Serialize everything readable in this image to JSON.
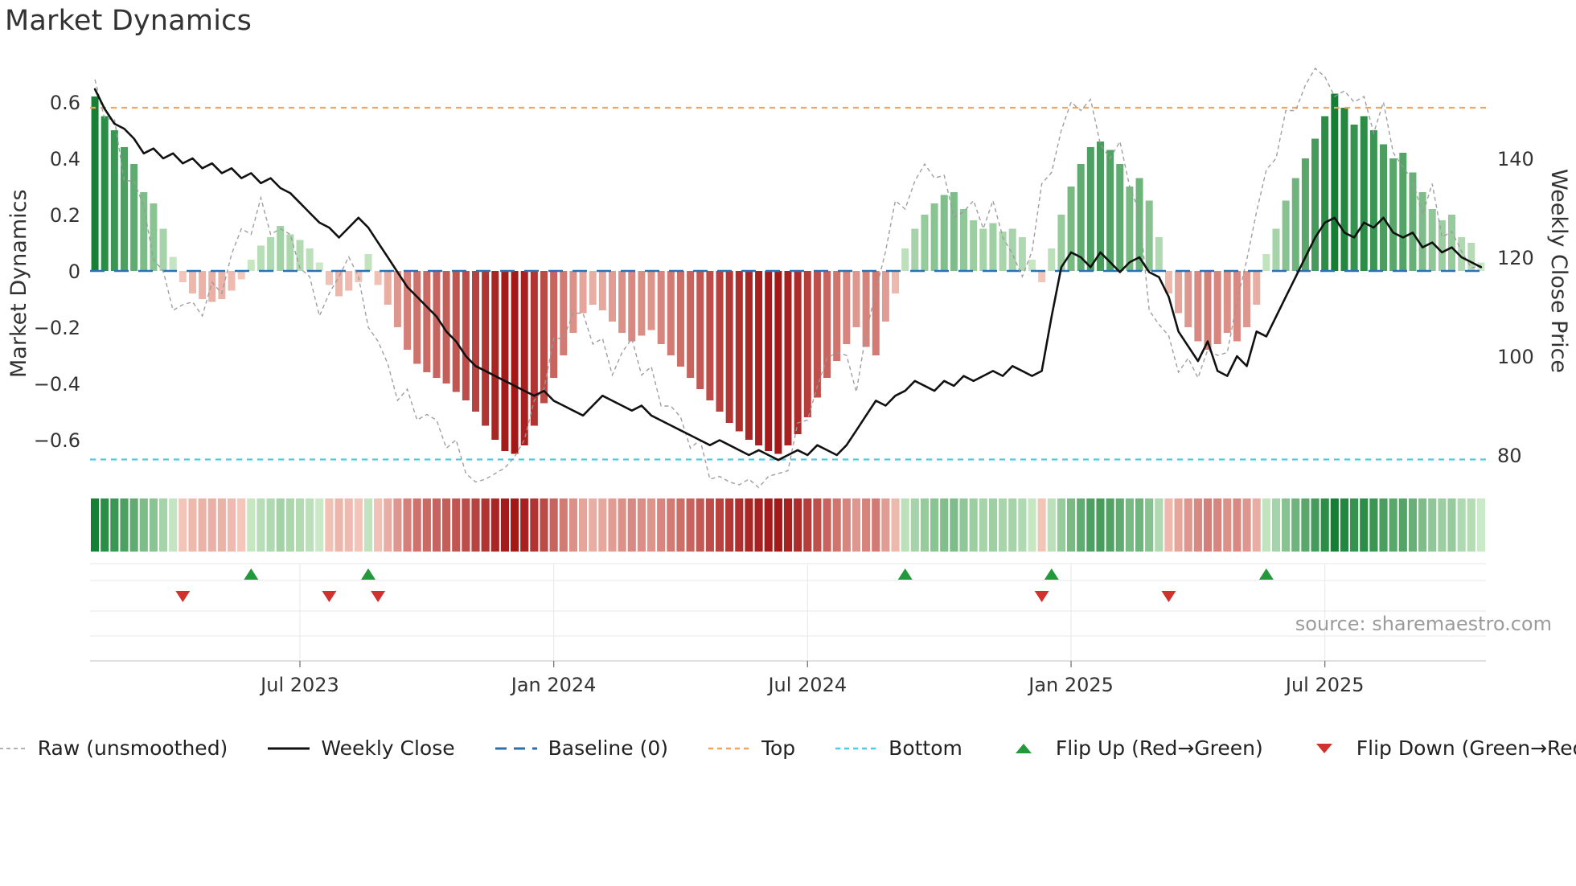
{
  "title": "Market Dynamics",
  "source": "source: sharemaestro.com",
  "axes": {
    "left_label": "Market Dynamics",
    "right_label": "Weekly Close Price",
    "left_ticks": [
      {
        "value": 0.6,
        "label": "0.6"
      },
      {
        "value": 0.4,
        "label": "0.4"
      },
      {
        "value": 0.2,
        "label": "0.2"
      },
      {
        "value": 0.0,
        "label": "0"
      },
      {
        "value": -0.2,
        "label": "−0.2"
      },
      {
        "value": -0.4,
        "label": "−0.4"
      },
      {
        "value": -0.6,
        "label": "−0.6"
      }
    ],
    "right_ticks": [
      {
        "value": 140,
        "label": "140"
      },
      {
        "value": 120,
        "label": "120"
      },
      {
        "value": 100,
        "label": "100"
      },
      {
        "value": 80,
        "label": "80"
      }
    ],
    "x_ticks": [
      {
        "week": 21,
        "label": "Jul 2023"
      },
      {
        "week": 47,
        "label": "Jan 2024"
      },
      {
        "week": 73,
        "label": "Jul 2024"
      },
      {
        "week": 100,
        "label": "Jan 2025"
      },
      {
        "week": 126,
        "label": "Jul 2025"
      }
    ]
  },
  "colors": {
    "pos_light": "#d3eecd",
    "pos_dark": "#0e7b2f",
    "neg_light": "#f8cfc2",
    "neg_dark": "#a41818",
    "raw": "#9a9a9a",
    "price": "#111111",
    "baseline": "#2e6fae",
    "top": "#f6a35c",
    "bottom": "#46cfe0",
    "flip_up": "#23993c",
    "flip_down": "#d2322e",
    "grid": "#e7e7e7",
    "axis_line": "#cccccc",
    "axis_text": "#333333"
  },
  "legend": [
    {
      "label": "Raw (unsmoothed)",
      "swatch": "dashed-line",
      "color": "#9a9a9a"
    },
    {
      "label": "Weekly Close",
      "swatch": "solid-line",
      "color": "#111111"
    },
    {
      "label": "Baseline (0)",
      "swatch": "long-dash-line",
      "color": "#2e6fae"
    },
    {
      "label": "Top",
      "swatch": "dash-line",
      "color": "#f6a35c"
    },
    {
      "label": "Bottom",
      "swatch": "dash-line",
      "color": "#46cfe0"
    },
    {
      "label": "Flip Up (Red→Green)",
      "swatch": "triangle-up",
      "color": "#23993c"
    },
    {
      "label": "Flip Down (Green→Red)",
      "swatch": "triangle-down",
      "color": "#d2322e"
    }
  ],
  "chart_data": {
    "type": "bar+line",
    "frequency": "weekly",
    "n_points": 143,
    "title": "Market Dynamics",
    "left_axis_label": "Market Dynamics",
    "right_axis_label": "Weekly Close Price",
    "osc_axis_range": [
      -0.78,
      0.72
    ],
    "price_axis_range": [
      72,
      160
    ],
    "grid": false,
    "legend_position": "bottom",
    "reference_lines": {
      "baseline": 0,
      "top": 0.58,
      "bottom": -0.67
    },
    "oscillator_smoothed": [
      0.62,
      0.55,
      0.5,
      0.44,
      0.38,
      0.28,
      0.24,
      0.15,
      0.05,
      -0.04,
      -0.08,
      -0.1,
      -0.11,
      -0.1,
      -0.07,
      -0.03,
      0.04,
      0.09,
      0.12,
      0.16,
      0.13,
      0.11,
      0.08,
      0.03,
      -0.05,
      -0.09,
      -0.07,
      -0.04,
      0.06,
      -0.05,
      -0.12,
      -0.2,
      -0.28,
      -0.33,
      -0.36,
      -0.38,
      -0.4,
      -0.43,
      -0.46,
      -0.5,
      -0.55,
      -0.6,
      -0.64,
      -0.65,
      -0.62,
      -0.55,
      -0.47,
      -0.38,
      -0.3,
      -0.22,
      -0.15,
      -0.12,
      -0.14,
      -0.18,
      -0.22,
      -0.25,
      -0.23,
      -0.21,
      -0.26,
      -0.3,
      -0.34,
      -0.38,
      -0.42,
      -0.46,
      -0.5,
      -0.54,
      -0.57,
      -0.6,
      -0.62,
      -0.64,
      -0.65,
      -0.62,
      -0.58,
      -0.52,
      -0.45,
      -0.38,
      -0.32,
      -0.26,
      -0.2,
      -0.27,
      -0.3,
      -0.18,
      -0.08,
      0.08,
      0.15,
      0.2,
      0.24,
      0.27,
      0.28,
      0.22,
      0.18,
      0.15,
      0.17,
      0.14,
      0.15,
      0.12,
      0.04,
      -0.04,
      0.08,
      0.2,
      0.3,
      0.38,
      0.44,
      0.46,
      0.43,
      0.38,
      0.3,
      0.33,
      0.25,
      0.12,
      -0.08,
      -0.15,
      -0.2,
      -0.25,
      -0.28,
      -0.26,
      -0.22,
      -0.25,
      -0.2,
      -0.12,
      0.06,
      0.15,
      0.25,
      0.33,
      0.4,
      0.47,
      0.55,
      0.63,
      0.58,
      0.52,
      0.55,
      0.5,
      0.45,
      0.4,
      0.42,
      0.35,
      0.28,
      0.22,
      0.18,
      0.2,
      0.12,
      0.1,
      0.03
    ],
    "oscillator_raw": [
      0.68,
      0.54,
      0.54,
      0.32,
      0.32,
      0.23,
      0.04,
      0.0,
      -0.14,
      -0.12,
      -0.11,
      -0.16,
      -0.04,
      -0.08,
      0.06,
      0.15,
      0.13,
      0.26,
      0.13,
      0.15,
      0.13,
      0.01,
      -0.02,
      -0.16,
      -0.08,
      -0.02,
      0.05,
      -0.02,
      -0.2,
      -0.25,
      -0.33,
      -0.46,
      -0.42,
      -0.53,
      -0.51,
      -0.53,
      -0.63,
      -0.6,
      -0.72,
      -0.75,
      -0.74,
      -0.72,
      -0.7,
      -0.66,
      -0.6,
      -0.46,
      -0.42,
      -0.24,
      -0.24,
      -0.15,
      -0.15,
      -0.26,
      -0.24,
      -0.37,
      -0.29,
      -0.24,
      -0.37,
      -0.34,
      -0.48,
      -0.48,
      -0.52,
      -0.63,
      -0.6,
      -0.74,
      -0.73,
      -0.75,
      -0.76,
      -0.74,
      -0.77,
      -0.73,
      -0.72,
      -0.71,
      -0.54,
      -0.53,
      -0.41,
      -0.31,
      -0.29,
      -0.3,
      -0.43,
      -0.22,
      -0.07,
      0.07,
      0.25,
      0.22,
      0.32,
      0.38,
      0.33,
      0.34,
      0.19,
      0.21,
      0.25,
      0.15,
      0.25,
      0.12,
      0.06,
      -0.02,
      0.07,
      0.31,
      0.35,
      0.5,
      0.6,
      0.57,
      0.61,
      0.45,
      0.4,
      0.46,
      0.3,
      0.21,
      -0.14,
      -0.19,
      -0.23,
      -0.36,
      -0.31,
      -0.38,
      -0.28,
      -0.3,
      -0.29,
      -0.11,
      0.04,
      0.21,
      0.36,
      0.4,
      0.57,
      0.57,
      0.66,
      0.72,
      0.69,
      0.62,
      0.64,
      0.6,
      0.62,
      0.49,
      0.6,
      0.42,
      0.37,
      0.32,
      0.2,
      0.31,
      0.12,
      0.14,
      0.07,
      0.01,
      0.02
    ],
    "weekly_close": [
      154,
      150,
      147,
      146,
      144,
      141,
      142,
      140,
      141,
      139,
      140,
      138,
      139,
      137,
      138,
      136,
      137,
      135,
      136,
      134,
      133,
      131,
      129,
      127,
      126,
      124,
      126,
      128,
      126,
      123,
      120,
      117,
      114,
      112,
      110,
      108,
      105,
      103,
      100,
      98,
      97,
      96,
      95,
      94,
      93,
      92,
      93,
      91,
      90,
      89,
      88,
      90,
      92,
      91,
      90,
      89,
      90,
      88,
      87,
      86,
      85,
      84,
      83,
      82,
      83,
      82,
      81,
      80,
      81,
      80,
      79,
      80,
      81,
      80,
      82,
      81,
      80,
      82,
      85,
      88,
      91,
      90,
      92,
      93,
      95,
      94,
      93,
      95,
      94,
      96,
      95,
      96,
      97,
      96,
      98,
      97,
      96,
      97,
      108,
      118,
      121,
      120,
      118,
      121,
      119,
      117,
      119,
      120,
      117,
      116,
      112,
      105,
      102,
      99,
      103,
      97,
      96,
      100,
      98,
      105,
      104,
      108,
      112,
      116,
      120,
      124,
      127,
      128,
      125,
      124,
      127,
      126,
      128,
      125,
      124,
      125,
      122,
      123,
      121,
      122,
      120,
      119,
      118
    ],
    "flip_up_weeks": [
      16,
      28,
      83,
      98,
      120
    ],
    "flip_down_weeks": [
      9,
      24,
      29,
      97,
      110
    ]
  }
}
